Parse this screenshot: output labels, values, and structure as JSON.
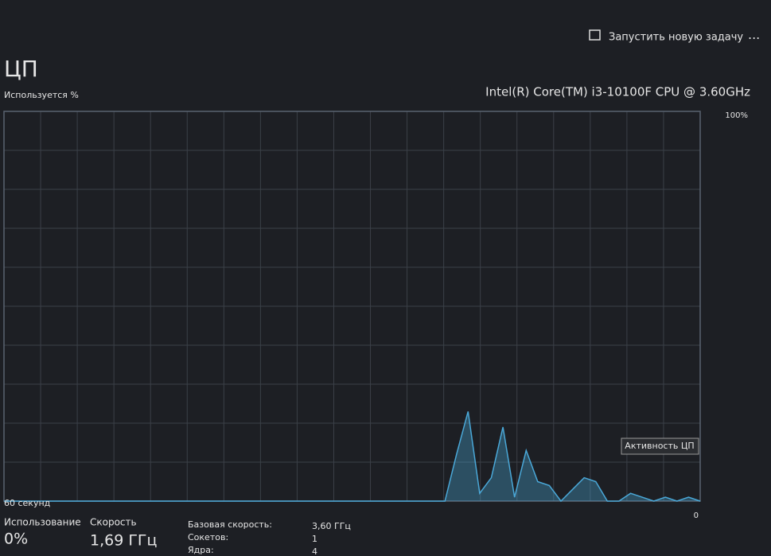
{
  "toolbar": {
    "action": "Запустить новую задачу"
  },
  "header": {
    "title": "ЦП",
    "cpu_name": "Intel(R) Core(TM) i3-10100F CPU @ 3.60GHz"
  },
  "chart_data": {
    "type": "area",
    "ylabel": "Используется %",
    "xlabel": "60 секунд",
    "values": [
      0,
      0,
      0,
      0,
      0,
      0,
      0,
      0,
      0,
      0,
      0,
      0,
      0,
      0,
      0,
      0,
      0,
      0,
      0,
      0,
      0,
      0,
      0,
      0,
      0,
      0,
      0,
      0,
      0,
      0,
      0,
      0,
      0,
      0,
      0,
      0,
      0,
      0,
      0,
      12,
      23,
      2,
      6,
      19,
      1,
      13,
      5,
      4,
      0,
      3,
      6,
      5,
      0,
      0,
      2,
      1,
      0,
      1,
      0,
      1,
      0
    ],
    "ylim": [
      0,
      100
    ],
    "yticks": [
      0,
      {
        "value": 100,
        "label": "100%"
      }
    ],
    "color": "#4aa8d8",
    "tooltip": "Активность ЦП"
  },
  "stats": {
    "usage_label": "Использование",
    "usage_value": "0%",
    "speed_label": "Скорость",
    "speed_value": "1,69 ГГц",
    "details": [
      [
        "Базовая скорость:",
        "3,60 ГГц"
      ],
      [
        "Сокетов:",
        "1"
      ],
      [
        "Ядра:",
        "4"
      ]
    ]
  }
}
